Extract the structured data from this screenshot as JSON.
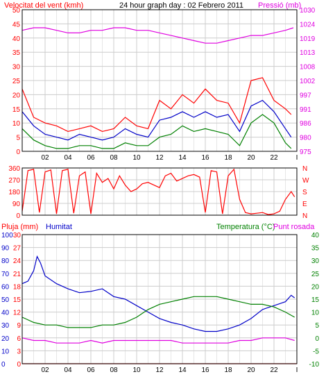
{
  "header": {
    "title": "24 hour graph day : 02 Febrero 2011",
    "wind_label": "Velocitat del vent (kmh)",
    "pressure_label": "Pressió (mb)",
    "rain_label": "Pluja (mm)",
    "humidity_label": "Humitat",
    "temp_label": "Temperatura (°C)",
    "dew_label": "Punt rosada"
  },
  "colors": {
    "wind_gust": "#ff0000",
    "wind_avg": "#0000c8",
    "wind_green": "#008000",
    "pressure": "#e000e0",
    "direction": "#ff0000",
    "humidity": "#0000c8",
    "temperature": "#008000",
    "dew_point": "#e000e0",
    "rain": "#ff0000",
    "grid": "#cccccc"
  },
  "chart_data": [
    {
      "type": "line",
      "name": "wind_pressure",
      "x_ticks": [
        "02",
        "04",
        "06",
        "08",
        "10",
        "12",
        "14",
        "16",
        "18",
        "20",
        "22",
        "I"
      ],
      "xlim": [
        0,
        24
      ],
      "left_axis": {
        "label": "Velocitat del vent (kmh)",
        "ticks": [
          0,
          5,
          10,
          15,
          20,
          25,
          30,
          35,
          40,
          45,
          50
        ],
        "ylim": [
          0,
          50
        ]
      },
      "right_axis": {
        "label": "Pressió (mb)",
        "ticks": [
          975,
          980,
          986,
          991,
          997,
          1002,
          1008,
          1013,
          1019,
          1024,
          1030
        ],
        "ylim": [
          975,
          1030
        ]
      },
      "series": [
        {
          "name": "gust",
          "axis": "left",
          "x": [
            0,
            1,
            2,
            3,
            4,
            5,
            6,
            7,
            8,
            9,
            10,
            11,
            12,
            13,
            14,
            15,
            16,
            17,
            18,
            19,
            20,
            21,
            22,
            23,
            23.5
          ],
          "values": [
            22,
            12,
            10,
            9,
            7,
            8,
            9,
            7,
            8,
            12,
            9,
            8,
            18,
            15,
            20,
            17,
            22,
            18,
            17,
            10,
            25,
            26,
            18,
            15,
            13
          ]
        },
        {
          "name": "average",
          "axis": "left",
          "x": [
            0,
            1,
            2,
            3,
            4,
            5,
            6,
            7,
            8,
            9,
            10,
            11,
            12,
            13,
            14,
            15,
            16,
            17,
            18,
            19,
            20,
            21,
            22,
            23,
            23.5
          ],
          "values": [
            14,
            9,
            6,
            5,
            4,
            6,
            5,
            4,
            5,
            8,
            6,
            5,
            11,
            12,
            14,
            12,
            14,
            12,
            13,
            7,
            16,
            18,
            14,
            8,
            5
          ]
        },
        {
          "name": "wind_min",
          "axis": "left",
          "x": [
            0,
            1,
            2,
            3,
            4,
            5,
            6,
            7,
            8,
            9,
            10,
            11,
            12,
            13,
            14,
            15,
            16,
            17,
            18,
            19,
            20,
            21,
            22,
            23,
            23.5
          ],
          "values": [
            8,
            4,
            2,
            1,
            1,
            2,
            2,
            1,
            1,
            3,
            2,
            2,
            5,
            6,
            9,
            7,
            8,
            7,
            6,
            2,
            10,
            13,
            10,
            3,
            1
          ]
        },
        {
          "name": "pressure",
          "axis": "right",
          "x": [
            0,
            1,
            2,
            3,
            4,
            5,
            6,
            7,
            8,
            9,
            10,
            11,
            12,
            13,
            14,
            15,
            16,
            17,
            18,
            19,
            20,
            21,
            22,
            23,
            23.7
          ],
          "values": [
            1022,
            1023,
            1023,
            1022,
            1021,
            1021,
            1022,
            1022,
            1023,
            1023,
            1022,
            1022,
            1021,
            1020,
            1019,
            1018,
            1017,
            1017,
            1018,
            1019,
            1020,
            1020,
            1021,
            1022,
            1023
          ]
        }
      ]
    },
    {
      "type": "line",
      "name": "wind_direction",
      "xlim": [
        0,
        24
      ],
      "left_axis": {
        "ticks": [
          0,
          90,
          180,
          270,
          360
        ],
        "ylim": [
          0,
          360
        ]
      },
      "right_axis": {
        "ticks": [
          "N",
          "E",
          "S",
          "W",
          "N"
        ]
      },
      "series": [
        {
          "name": "direction",
          "x": [
            0,
            0.5,
            1,
            1.5,
            2,
            2.5,
            3,
            3.5,
            4,
            4.5,
            5,
            5.5,
            6,
            6.5,
            7,
            7.5,
            8,
            8.5,
            9,
            9.5,
            10,
            10.5,
            11,
            11.5,
            12,
            12.5,
            13,
            13.5,
            14,
            14.5,
            15,
            15.5,
            16,
            16.5,
            17,
            17.5,
            18,
            18.5,
            19,
            19.5,
            20,
            20.5,
            21,
            21.5,
            22,
            22.5,
            23,
            23.5,
            23.8
          ],
          "values": [
            30,
            340,
            350,
            20,
            330,
            345,
            10,
            340,
            350,
            15,
            300,
            330,
            10,
            320,
            250,
            280,
            200,
            300,
            230,
            180,
            200,
            240,
            250,
            230,
            210,
            300,
            320,
            260,
            280,
            300,
            310,
            290,
            20,
            340,
            330,
            10,
            300,
            350,
            120,
            20,
            10,
            15,
            20,
            5,
            10,
            30,
            120,
            180,
            140
          ]
        }
      ]
    },
    {
      "type": "line",
      "name": "humidity_temperature",
      "x_ticks": [
        "02",
        "04",
        "06",
        "08",
        "10",
        "12",
        "14",
        "16",
        "18",
        "20",
        "22",
        "I"
      ],
      "xlim": [
        0,
        24
      ],
      "rain_axis": {
        "label": "Pluja (mm)",
        "ticks": [
          0,
          3,
          6,
          9,
          12,
          15,
          18,
          21,
          24,
          27,
          30
        ],
        "ylim": [
          0,
          30
        ]
      },
      "humidity_axis": {
        "label": "Humitat",
        "ticks": [
          0,
          10,
          20,
          30,
          40,
          50,
          60,
          70,
          80,
          90,
          100
        ],
        "ylim": [
          0,
          100
        ]
      },
      "temp_axis": {
        "label": "Temperatura (°C)",
        "ticks": [
          -10,
          -5,
          0,
          5,
          10,
          15,
          20,
          25,
          30,
          35,
          40
        ],
        "ylim": [
          -10,
          40
        ]
      },
      "series": [
        {
          "name": "humidity",
          "axis": "humidity",
          "x": [
            0,
            0.5,
            1,
            1.3,
            1.6,
            2,
            3,
            4,
            5,
            6,
            7,
            8,
            9,
            10,
            11,
            12,
            13,
            14,
            15,
            16,
            17,
            18,
            19,
            20,
            21,
            22,
            23,
            23.5,
            23.8
          ],
          "values": [
            62,
            64,
            72,
            83,
            78,
            68,
            62,
            58,
            55,
            56,
            58,
            52,
            50,
            45,
            40,
            35,
            32,
            30,
            27,
            25,
            25,
            27,
            30,
            35,
            42,
            45,
            48,
            53,
            51
          ]
        },
        {
          "name": "temperature",
          "axis": "temp",
          "x": [
            0,
            1,
            2,
            3,
            4,
            5,
            6,
            7,
            8,
            9,
            10,
            11,
            12,
            13,
            14,
            15,
            16,
            17,
            18,
            19,
            20,
            21,
            22,
            23,
            23.8
          ],
          "values": [
            8,
            6,
            5,
            5,
            4,
            4,
            4,
            5,
            5,
            6,
            8,
            11,
            13,
            14,
            15,
            16,
            16,
            16,
            15,
            14,
            13,
            13,
            12,
            10,
            8
          ]
        },
        {
          "name": "dew_point",
          "axis": "temp",
          "x": [
            0,
            1,
            2,
            3,
            4,
            5,
            6,
            7,
            8,
            9,
            10,
            11,
            12,
            13,
            14,
            15,
            16,
            17,
            18,
            19,
            20,
            21,
            22,
            23,
            23.8
          ],
          "values": [
            0,
            -1,
            -1,
            -2,
            -2,
            -2,
            -1,
            -2,
            -1,
            -1,
            -1,
            -1,
            -1,
            -1,
            -2,
            -2,
            -2,
            -2,
            -2,
            -1,
            -1,
            0,
            0,
            0,
            -1
          ]
        },
        {
          "name": "rain",
          "axis": "rain",
          "x": [
            0,
            24
          ],
          "values": [
            0,
            0
          ]
        }
      ]
    }
  ]
}
